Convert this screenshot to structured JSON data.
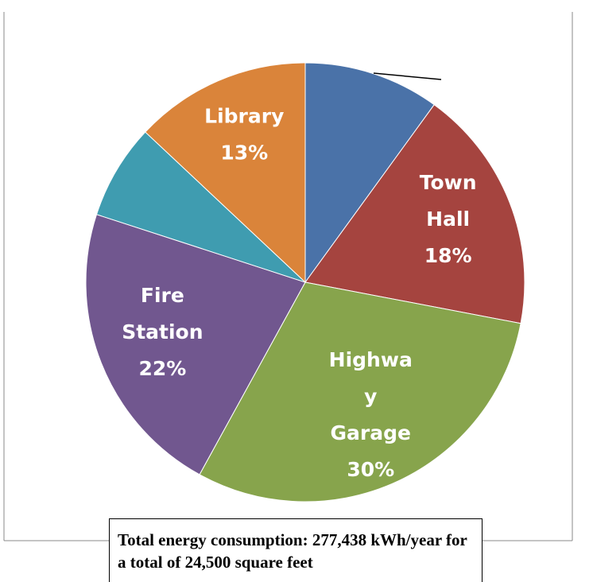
{
  "chart_data": {
    "type": "pie",
    "categories": [
      null,
      "Town Hall",
      "Highway Garage",
      "Fire Station",
      null,
      "Library"
    ],
    "values": [
      10,
      18,
      30,
      22,
      7,
      13
    ],
    "value_labels": [
      null,
      "18%",
      "30%",
      "22%",
      null,
      "13%"
    ],
    "colors": [
      "#4a72a8",
      "#a5443f",
      "#87a44c",
      "#71578f",
      "#3f9cb0",
      "#da843a"
    ],
    "annotation": "Total energy consumption: 277,438 kWh/year for a total of 24,500 square feet"
  }
}
